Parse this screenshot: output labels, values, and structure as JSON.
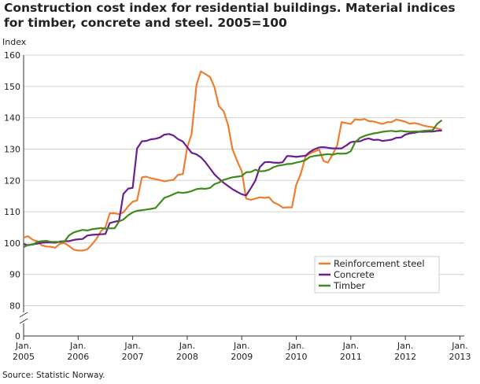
{
  "chart_data": {
    "type": "line",
    "title": "Construction cost index for residential buildings. Material indices for timber, concrete and steel. 2005=100",
    "ylabel": "Index",
    "xlabel": "",
    "ylim": [
      0,
      160
    ],
    "axis_break": [
      0,
      80
    ],
    "yticks": [
      0,
      80,
      90,
      100,
      110,
      120,
      130,
      140,
      150,
      160
    ],
    "xtick_labels": [
      {
        "line1": "Jan.",
        "line2": "2005",
        "x": 2005.0
      },
      {
        "line1": "Jan.",
        "line2": "2006",
        "x": 2006.0
      },
      {
        "line1": "Jan.",
        "line2": "2007",
        "x": 2007.0
      },
      {
        "line1": "Jan.",
        "line2": "2008",
        "x": 2008.0
      },
      {
        "line1": "Jan.",
        "line2": "2009",
        "x": 2009.0
      },
      {
        "line1": "Jan.",
        "line2": "2010",
        "x": 2010.0
      },
      {
        "line1": "Jan.",
        "line2": "2011",
        "x": 2011.0
      },
      {
        "line1": "Jan.",
        "line2": "2012",
        "x": 2012.0
      },
      {
        "line1": "Jan.",
        "line2": "2013",
        "x": 2013.0
      }
    ],
    "xrange": [
      2005.0,
      2013.08
    ],
    "grid": true,
    "legend_position": "lower-right",
    "series": [
      {
        "name": "Reinforcement steel",
        "color": "#ed7d31",
        "points": [
          [
            2005.0,
            101.7
          ],
          [
            2005.08,
            102.2
          ],
          [
            2005.17,
            101.0
          ],
          [
            2005.25,
            100.6
          ],
          [
            2005.33,
            99.3
          ],
          [
            2005.42,
            98.9
          ],
          [
            2005.5,
            98.8
          ],
          [
            2005.58,
            98.5
          ],
          [
            2005.67,
            99.8
          ],
          [
            2005.75,
            100.0
          ],
          [
            2005.83,
            99.1
          ],
          [
            2005.92,
            97.9
          ],
          [
            2006.0,
            97.6
          ],
          [
            2006.08,
            97.6
          ],
          [
            2006.17,
            98.0
          ],
          [
            2006.25,
            99.5
          ],
          [
            2006.33,
            101.2
          ],
          [
            2006.42,
            103.8
          ],
          [
            2006.5,
            105.1
          ],
          [
            2006.58,
            109.5
          ],
          [
            2006.67,
            109.5
          ],
          [
            2006.75,
            109.2
          ],
          [
            2006.83,
            109.8
          ],
          [
            2006.92,
            111.8
          ],
          [
            2007.0,
            113.2
          ],
          [
            2007.08,
            113.6
          ],
          [
            2007.17,
            121.0
          ],
          [
            2007.25,
            121.2
          ],
          [
            2007.33,
            120.7
          ],
          [
            2007.42,
            120.4
          ],
          [
            2007.5,
            120.1
          ],
          [
            2007.58,
            119.7
          ],
          [
            2007.67,
            120.0
          ],
          [
            2007.75,
            120.2
          ],
          [
            2007.83,
            121.8
          ],
          [
            2007.92,
            122.0
          ],
          [
            2008.0,
            130.5
          ],
          [
            2008.08,
            134.8
          ],
          [
            2008.17,
            150.5
          ],
          [
            2008.25,
            154.8
          ],
          [
            2008.33,
            154.0
          ],
          [
            2008.42,
            153.0
          ],
          [
            2008.5,
            149.7
          ],
          [
            2008.58,
            143.8
          ],
          [
            2008.67,
            142.0
          ],
          [
            2008.75,
            137.6
          ],
          [
            2008.83,
            130.0
          ],
          [
            2008.92,
            126.0
          ],
          [
            2009.0,
            123.0
          ],
          [
            2009.08,
            114.2
          ],
          [
            2009.17,
            113.8
          ],
          [
            2009.25,
            114.2
          ],
          [
            2009.33,
            114.6
          ],
          [
            2009.42,
            114.4
          ],
          [
            2009.5,
            114.6
          ],
          [
            2009.58,
            113.0
          ],
          [
            2009.67,
            112.3
          ],
          [
            2009.75,
            111.3
          ],
          [
            2009.83,
            111.4
          ],
          [
            2009.92,
            111.4
          ],
          [
            2010.0,
            118.6
          ],
          [
            2010.08,
            122.0
          ],
          [
            2010.17,
            127.6
          ],
          [
            2010.25,
            128.6
          ],
          [
            2010.33,
            129.2
          ],
          [
            2010.42,
            129.8
          ],
          [
            2010.5,
            126.2
          ],
          [
            2010.58,
            125.7
          ],
          [
            2010.67,
            128.4
          ],
          [
            2010.75,
            131.2
          ],
          [
            2010.83,
            138.6
          ],
          [
            2010.92,
            138.3
          ],
          [
            2011.0,
            138.0
          ],
          [
            2011.08,
            139.5
          ],
          [
            2011.17,
            139.3
          ],
          [
            2011.25,
            139.6
          ],
          [
            2011.33,
            138.9
          ],
          [
            2011.42,
            138.8
          ],
          [
            2011.5,
            138.4
          ],
          [
            2011.58,
            138.0
          ],
          [
            2011.67,
            138.6
          ],
          [
            2011.75,
            138.6
          ],
          [
            2011.83,
            139.4
          ],
          [
            2011.92,
            139.1
          ],
          [
            2012.0,
            138.7
          ],
          [
            2012.08,
            138.1
          ],
          [
            2012.17,
            138.3
          ],
          [
            2012.25,
            138.0
          ],
          [
            2012.33,
            137.5
          ],
          [
            2012.42,
            137.2
          ],
          [
            2012.5,
            137.0
          ],
          [
            2012.58,
            136.6
          ],
          [
            2012.67,
            136.2
          ]
        ]
      },
      {
        "name": "Concrete",
        "color": "#6b1e8f",
        "points": [
          [
            2005.0,
            99.7
          ],
          [
            2005.08,
            99.3
          ],
          [
            2005.17,
            99.6
          ],
          [
            2005.25,
            99.8
          ],
          [
            2005.33,
            100.1
          ],
          [
            2005.42,
            100.2
          ],
          [
            2005.5,
            100.2
          ],
          [
            2005.58,
            100.1
          ],
          [
            2005.67,
            100.5
          ],
          [
            2005.75,
            100.6
          ],
          [
            2005.83,
            100.6
          ],
          [
            2005.92,
            101.0
          ],
          [
            2006.0,
            101.2
          ],
          [
            2006.08,
            101.3
          ],
          [
            2006.17,
            102.4
          ],
          [
            2006.25,
            102.6
          ],
          [
            2006.33,
            102.7
          ],
          [
            2006.42,
            102.8
          ],
          [
            2006.5,
            102.9
          ],
          [
            2006.58,
            106.4
          ],
          [
            2006.67,
            106.8
          ],
          [
            2006.75,
            107.1
          ],
          [
            2006.83,
            115.7
          ],
          [
            2006.92,
            117.4
          ],
          [
            2007.0,
            117.6
          ],
          [
            2007.08,
            130.2
          ],
          [
            2007.17,
            132.5
          ],
          [
            2007.25,
            132.6
          ],
          [
            2007.33,
            133.1
          ],
          [
            2007.42,
            133.3
          ],
          [
            2007.5,
            133.7
          ],
          [
            2007.58,
            134.6
          ],
          [
            2007.67,
            134.8
          ],
          [
            2007.75,
            134.3
          ],
          [
            2007.83,
            133.2
          ],
          [
            2007.92,
            132.4
          ],
          [
            2008.0,
            130.6
          ],
          [
            2008.08,
            128.8
          ],
          [
            2008.17,
            128.3
          ],
          [
            2008.25,
            127.4
          ],
          [
            2008.33,
            125.9
          ],
          [
            2008.42,
            123.8
          ],
          [
            2008.5,
            121.9
          ],
          [
            2008.58,
            120.6
          ],
          [
            2008.67,
            119.2
          ],
          [
            2008.75,
            118.2
          ],
          [
            2008.83,
            117.2
          ],
          [
            2008.92,
            116.3
          ],
          [
            2009.0,
            115.6
          ],
          [
            2009.08,
            115.2
          ],
          [
            2009.17,
            117.6
          ],
          [
            2009.25,
            120.0
          ],
          [
            2009.33,
            124.2
          ],
          [
            2009.42,
            125.8
          ],
          [
            2009.5,
            125.9
          ],
          [
            2009.58,
            125.7
          ],
          [
            2009.67,
            125.6
          ],
          [
            2009.75,
            125.8
          ],
          [
            2009.83,
            127.8
          ],
          [
            2009.92,
            127.7
          ],
          [
            2010.0,
            127.5
          ],
          [
            2010.08,
            127.7
          ],
          [
            2010.17,
            127.9
          ],
          [
            2010.25,
            129.1
          ],
          [
            2010.33,
            129.9
          ],
          [
            2010.42,
            130.5
          ],
          [
            2010.5,
            130.6
          ],
          [
            2010.58,
            130.4
          ],
          [
            2010.67,
            130.2
          ],
          [
            2010.75,
            130.2
          ],
          [
            2010.83,
            130.2
          ],
          [
            2010.92,
            131.2
          ],
          [
            2011.0,
            132.2
          ],
          [
            2011.08,
            132.4
          ],
          [
            2011.17,
            132.5
          ],
          [
            2011.25,
            133.1
          ],
          [
            2011.33,
            133.4
          ],
          [
            2011.42,
            132.9
          ],
          [
            2011.5,
            133.0
          ],
          [
            2011.58,
            132.6
          ],
          [
            2011.67,
            132.8
          ],
          [
            2011.75,
            133.0
          ],
          [
            2011.83,
            133.6
          ],
          [
            2011.92,
            133.7
          ],
          [
            2012.0,
            134.6
          ],
          [
            2012.08,
            135.0
          ],
          [
            2012.17,
            135.2
          ],
          [
            2012.25,
            135.5
          ],
          [
            2012.33,
            135.5
          ],
          [
            2012.42,
            135.6
          ],
          [
            2012.5,
            135.6
          ],
          [
            2012.58,
            135.8
          ],
          [
            2012.67,
            135.9
          ]
        ]
      },
      {
        "name": "Timber",
        "color": "#3f8b1c",
        "points": [
          [
            2005.0,
            98.7
          ],
          [
            2005.08,
            99.4
          ],
          [
            2005.17,
            99.5
          ],
          [
            2005.25,
            100.4
          ],
          [
            2005.33,
            100.6
          ],
          [
            2005.42,
            100.7
          ],
          [
            2005.5,
            100.4
          ],
          [
            2005.58,
            100.4
          ],
          [
            2005.67,
            100.3
          ],
          [
            2005.75,
            100.5
          ],
          [
            2005.83,
            102.4
          ],
          [
            2005.92,
            103.4
          ],
          [
            2006.0,
            103.8
          ],
          [
            2006.08,
            104.2
          ],
          [
            2006.17,
            104.0
          ],
          [
            2006.25,
            104.4
          ],
          [
            2006.33,
            104.6
          ],
          [
            2006.42,
            104.8
          ],
          [
            2006.5,
            104.6
          ],
          [
            2006.58,
            104.7
          ],
          [
            2006.67,
            104.7
          ],
          [
            2006.75,
            106.9
          ],
          [
            2006.83,
            107.5
          ],
          [
            2006.92,
            108.9
          ],
          [
            2007.0,
            109.8
          ],
          [
            2007.08,
            110.3
          ],
          [
            2007.17,
            110.5
          ],
          [
            2007.25,
            110.7
          ],
          [
            2007.33,
            110.9
          ],
          [
            2007.42,
            111.2
          ],
          [
            2007.5,
            112.8
          ],
          [
            2007.58,
            114.4
          ],
          [
            2007.67,
            115.0
          ],
          [
            2007.75,
            115.6
          ],
          [
            2007.83,
            116.2
          ],
          [
            2007.92,
            116.0
          ],
          [
            2008.0,
            116.2
          ],
          [
            2008.08,
            116.6
          ],
          [
            2008.17,
            117.2
          ],
          [
            2008.25,
            117.4
          ],
          [
            2008.33,
            117.3
          ],
          [
            2008.42,
            117.6
          ],
          [
            2008.5,
            118.8
          ],
          [
            2008.58,
            119.3
          ],
          [
            2008.67,
            120.2
          ],
          [
            2008.75,
            120.6
          ],
          [
            2008.83,
            121.0
          ],
          [
            2008.92,
            121.2
          ],
          [
            2009.0,
            121.4
          ],
          [
            2009.08,
            122.6
          ],
          [
            2009.17,
            122.7
          ],
          [
            2009.25,
            123.4
          ],
          [
            2009.33,
            122.9
          ],
          [
            2009.42,
            123.0
          ],
          [
            2009.5,
            123.4
          ],
          [
            2009.58,
            124.2
          ],
          [
            2009.67,
            124.7
          ],
          [
            2009.75,
            124.9
          ],
          [
            2009.83,
            125.2
          ],
          [
            2009.92,
            125.3
          ],
          [
            2010.0,
            125.7
          ],
          [
            2010.08,
            126.0
          ],
          [
            2010.17,
            126.5
          ],
          [
            2010.25,
            127.5
          ],
          [
            2010.33,
            127.8
          ],
          [
            2010.42,
            128.0
          ],
          [
            2010.5,
            128.2
          ],
          [
            2010.58,
            128.4
          ],
          [
            2010.67,
            128.2
          ],
          [
            2010.75,
            128.6
          ],
          [
            2010.83,
            128.5
          ],
          [
            2010.92,
            128.6
          ],
          [
            2011.0,
            129.3
          ],
          [
            2011.08,
            132.2
          ],
          [
            2011.17,
            133.6
          ],
          [
            2011.25,
            134.2
          ],
          [
            2011.33,
            134.6
          ],
          [
            2011.42,
            135.0
          ],
          [
            2011.5,
            135.2
          ],
          [
            2011.58,
            135.5
          ],
          [
            2011.67,
            135.7
          ],
          [
            2011.75,
            135.8
          ],
          [
            2011.83,
            135.6
          ],
          [
            2011.92,
            135.8
          ],
          [
            2012.0,
            135.6
          ],
          [
            2012.08,
            135.5
          ],
          [
            2012.17,
            135.6
          ],
          [
            2012.25,
            135.6
          ],
          [
            2012.33,
            135.8
          ],
          [
            2012.42,
            135.9
          ],
          [
            2012.5,
            136.0
          ],
          [
            2012.58,
            138.0
          ],
          [
            2012.67,
            139.2
          ]
        ]
      }
    ]
  },
  "source": "Source: Statistic Norway."
}
